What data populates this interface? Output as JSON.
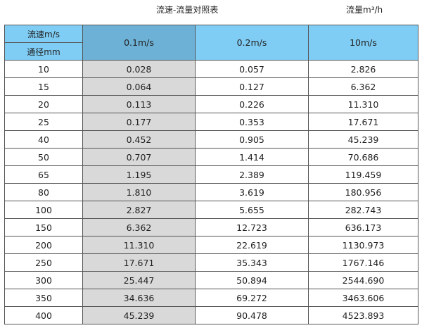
{
  "title": "流速-流量对照表",
  "unit_label": "流量m³/h",
  "header": {
    "velocity_label": "流速m/s",
    "diameter_label": "通径mm",
    "columns": [
      "0.1m/s",
      "0.2m/s",
      "10m/s"
    ]
  },
  "colors": {
    "header": "#7fcdf5",
    "selected_header": "#6db1d6",
    "selected_column": "#d9d9d9"
  },
  "rows": [
    [
      "10",
      "0.028",
      "0.057",
      "2.826"
    ],
    [
      "15",
      "0.064",
      "0.127",
      "6.362"
    ],
    [
      "20",
      "0.113",
      "0.226",
      "11.310"
    ],
    [
      "25",
      "0.177",
      "0.353",
      "17.671"
    ],
    [
      "40",
      "0.452",
      "0.905",
      "45.239"
    ],
    [
      "50",
      "0.707",
      "1.414",
      "70.686"
    ],
    [
      "65",
      "1.195",
      "2.389",
      "119.459"
    ],
    [
      "80",
      "1.810",
      "3.619",
      "180.956"
    ],
    [
      "100",
      "2.827",
      "5.655",
      "282.743"
    ],
    [
      "150",
      "6.362",
      "12.723",
      "636.173"
    ],
    [
      "200",
      "11.310",
      "22.619",
      "1130.973"
    ],
    [
      "250",
      "17.671",
      "35.343",
      "1767.146"
    ],
    [
      "300",
      "25.447",
      "50.894",
      "2544.690"
    ],
    [
      "350",
      "34.636",
      "69.272",
      "3463.606"
    ],
    [
      "400",
      "45.239",
      "90.478",
      "4523.893"
    ]
  ]
}
